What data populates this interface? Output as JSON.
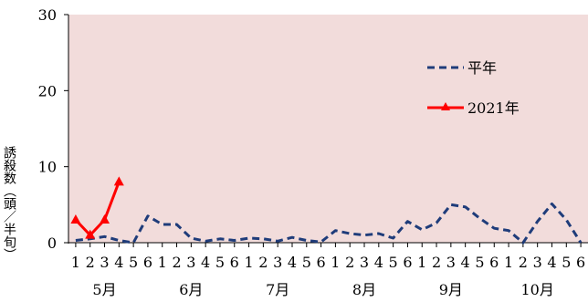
{
  "chart_data": {
    "type": "line",
    "title": "",
    "xlabel": "",
    "ylabel": "誘殺数（頭／半旬）",
    "ylim": [
      0,
      30
    ],
    "yticks": [
      0,
      10,
      20,
      30
    ],
    "grid": false,
    "legend_position": "top-right",
    "plot_background": "#f2dcdb",
    "x_sub_labels": [
      "1",
      "2",
      "3",
      "4",
      "5",
      "6",
      "1",
      "2",
      "3",
      "4",
      "5",
      "6",
      "1",
      "2",
      "3",
      "4",
      "5",
      "6",
      "1",
      "2",
      "3",
      "4",
      "5",
      "6",
      "1",
      "2",
      "3",
      "4",
      "5",
      "6",
      "1",
      "2",
      "3",
      "4",
      "5",
      "6"
    ],
    "months": [
      "5月",
      "6月",
      "7月",
      "8月",
      "9月",
      "10月"
    ],
    "series": [
      {
        "name": "平年",
        "color": "#1f3c7a",
        "style": "dashed",
        "marker": "none",
        "values": [
          0.3,
          0.5,
          0.8,
          0.3,
          0,
          3.5,
          2.4,
          2.4,
          0.6,
          0.2,
          0.5,
          0.3,
          0.6,
          0.5,
          0.2,
          0.7,
          0.3,
          0.1,
          1.6,
          1.2,
          1,
          1.2,
          0.6,
          2.8,
          1.7,
          2.6,
          5,
          4.7,
          3.2,
          1.9,
          1.6,
          0,
          2.8,
          5.1,
          3,
          0
        ]
      },
      {
        "name": "2021年",
        "color": "#ff0000",
        "style": "solid",
        "marker": "triangle",
        "values": [
          3,
          1,
          3,
          8
        ]
      }
    ]
  }
}
